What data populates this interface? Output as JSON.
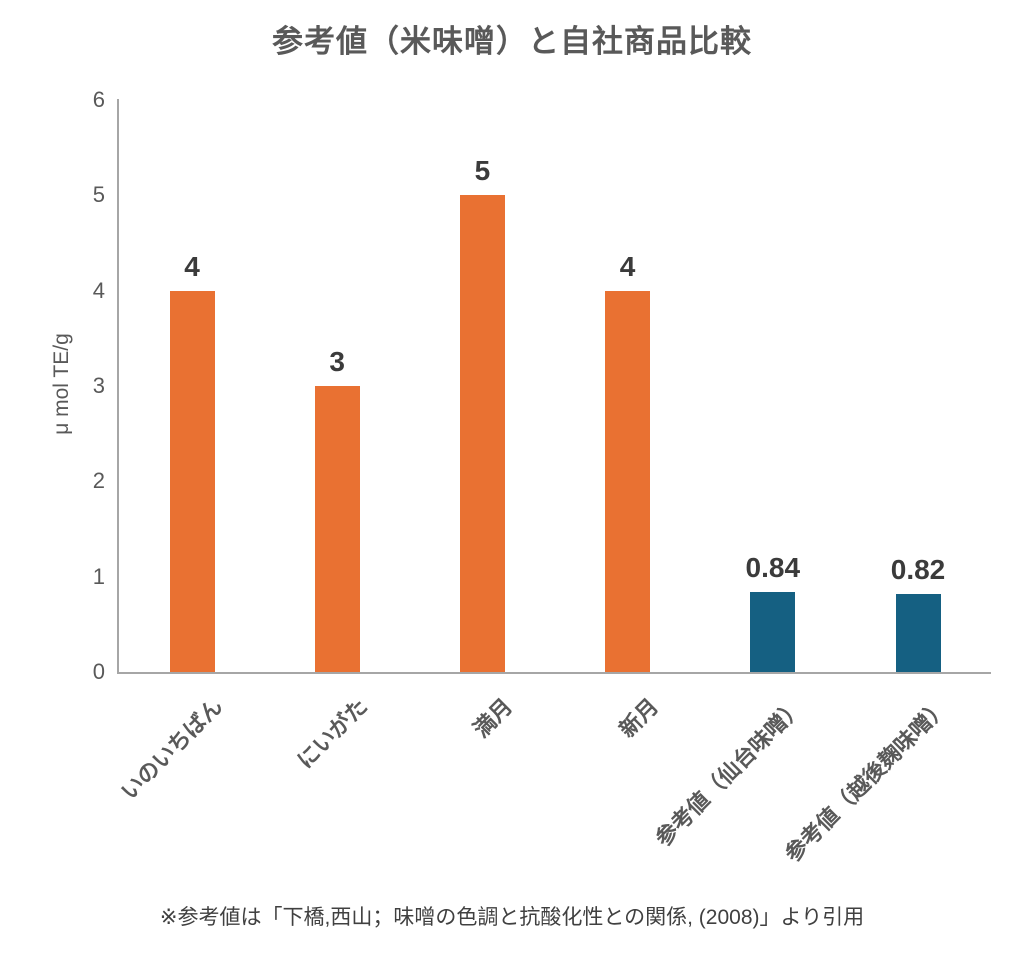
{
  "chart_data": {
    "type": "bar",
    "title": "参考値（米味噌）と自社商品比較",
    "ylabel": "μ mol TE/g",
    "xlabel": "",
    "ylim": [
      0,
      6
    ],
    "yticks": [
      0,
      1,
      2,
      3,
      4,
      5,
      6
    ],
    "grid": false,
    "legend": "none",
    "categories": [
      "いのいちばん",
      "にいがた",
      "満月",
      "新月",
      "参考値（仙台味噌）",
      "参考値（越後麹味噌）"
    ],
    "values": [
      4,
      3,
      5,
      4,
      0.84,
      0.82
    ],
    "data_labels": [
      "4",
      "3",
      "5",
      "4",
      "0.84",
      "0.82"
    ],
    "bar_colors": [
      "#E97132",
      "#E97132",
      "#E97132",
      "#E97132",
      "#156082",
      "#156082"
    ],
    "colors": {
      "own_product_bar": "#E97132",
      "reference_bar": "#156082",
      "axis_line": "#A6A6A6",
      "tick_text": "#595959",
      "title_text": "#595959",
      "data_label_text": "#3B3B3B"
    },
    "footnote": "※参考値は「下橋,西山；味噌の色調と抗酸化性との関係, (2008)」より引用"
  }
}
